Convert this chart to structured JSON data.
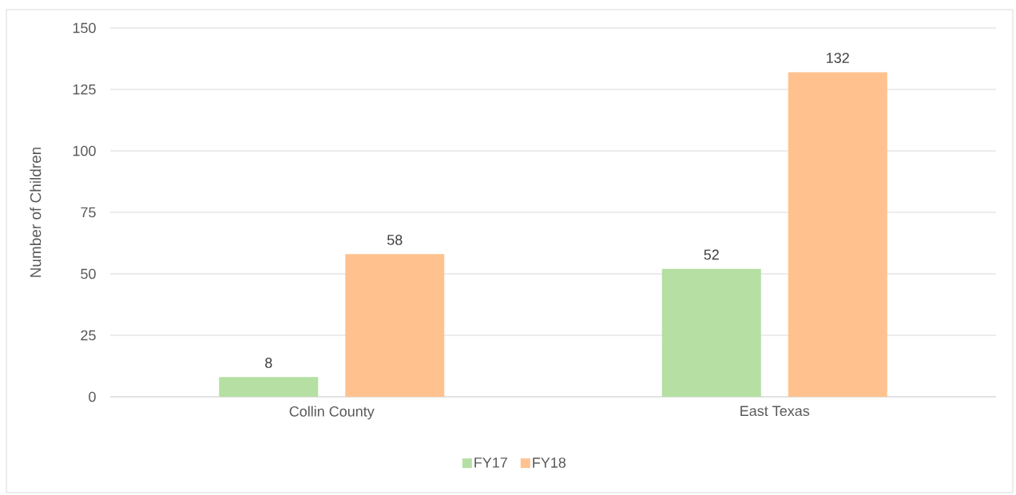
{
  "chart_data": {
    "type": "bar",
    "ylabel": "Number of Children",
    "categories": [
      "Collin County",
      "East Texas"
    ],
    "series": [
      {
        "name": "FY17",
        "color": "#b5dfa3",
        "values": [
          8,
          52
        ]
      },
      {
        "name": "FY18",
        "color": "#ffc28f",
        "values": [
          58,
          132
        ]
      }
    ],
    "ylim": [
      0,
      150
    ],
    "yticks": [
      0,
      25,
      50,
      75,
      100,
      125,
      150
    ],
    "grid": "y",
    "legend": "bottom",
    "data_labels": true
  }
}
